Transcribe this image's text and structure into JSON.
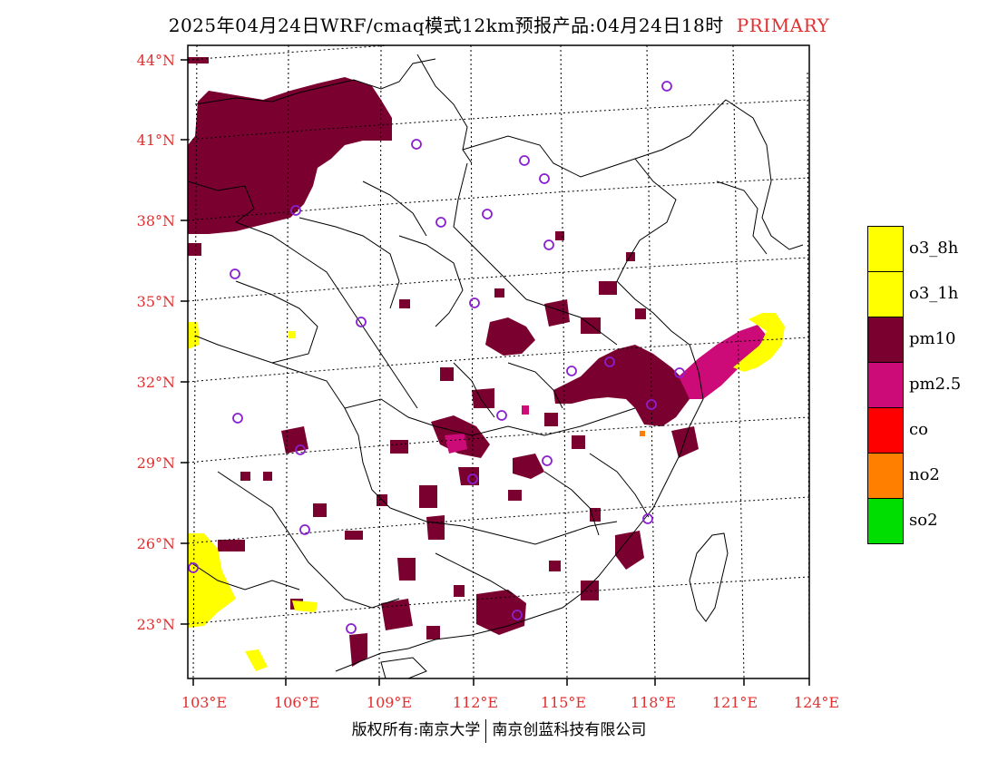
{
  "title": {
    "main": "2025年04月24日WRF/cmaq模式12km预报产品:04月24日18时",
    "tag": "PRIMARY"
  },
  "lat_labels": [
    "44°N",
    "41°N",
    "38°N",
    "35°N",
    "32°N",
    "29°N",
    "26°N",
    "23°N"
  ],
  "lon_labels": [
    "103°E",
    "106°E",
    "109°E",
    "112°E",
    "115°E",
    "118°E",
    "121°E",
    "124°E"
  ],
  "legend": [
    {
      "label": "o3_8h",
      "color": "#ffff00"
    },
    {
      "label": "o3_1h",
      "color": "#ffff00"
    },
    {
      "label": "pm10",
      "color": "#7a0030"
    },
    {
      "label": "pm2.5",
      "color": "#cc0a78"
    },
    {
      "label": "co",
      "color": "#ff0000"
    },
    {
      "label": "no2",
      "color": "#ff8000"
    },
    {
      "label": "so2",
      "color": "#00dd00"
    }
  ],
  "colors": {
    "pm10": "#7a0030",
    "pm25": "#cc0a78",
    "o3": "#ffff00",
    "station": "#8a20d0",
    "axis": "#e03030"
  },
  "footer": {
    "left": "版权所有:南京大学",
    "right": "南京创蓝科技有限公司"
  }
}
